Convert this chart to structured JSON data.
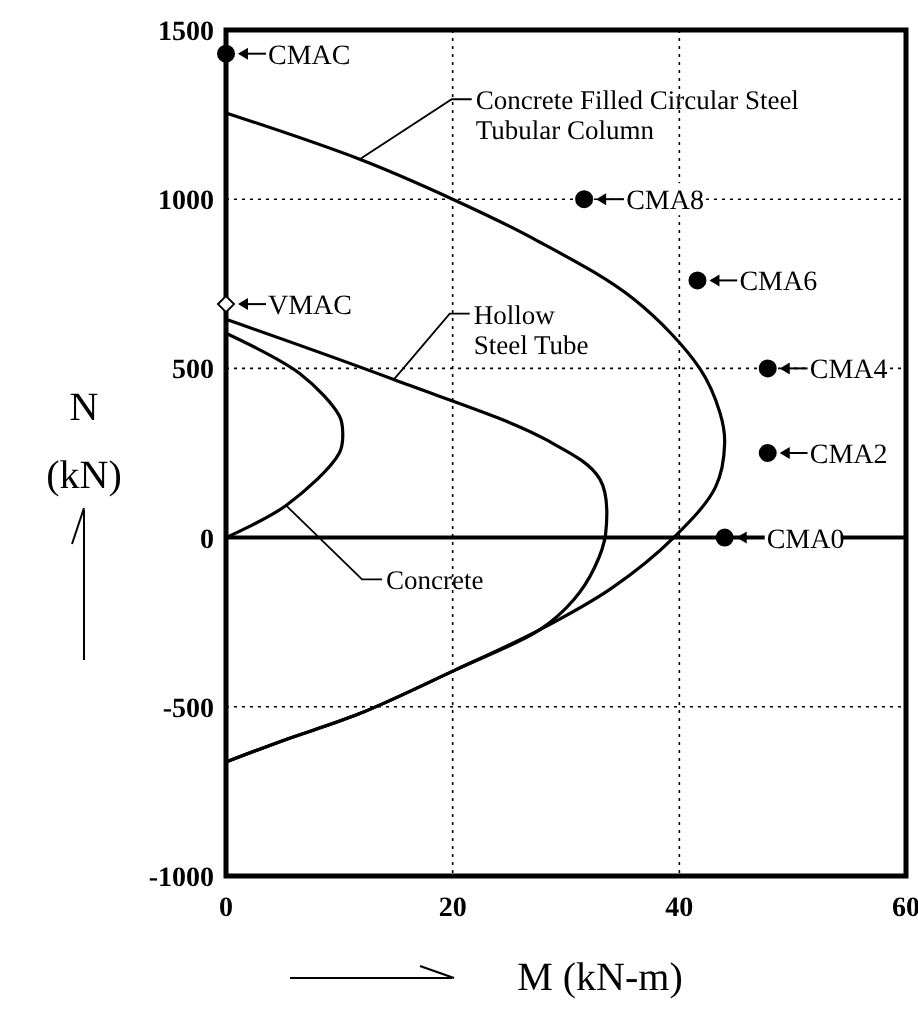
{
  "chart_data": {
    "type": "line",
    "xlabel": "M (kN-m)",
    "ylabel": "N (kN)",
    "xlim": [
      0,
      60
    ],
    "ylim": [
      -1000,
      1500
    ],
    "xticks": [
      0,
      20,
      40,
      60
    ],
    "yticks": [
      -1000,
      -500,
      0,
      500,
      1000,
      1500
    ],
    "grid": true,
    "line_style": "solid",
    "marker": "none",
    "ref_lines": [
      {
        "axis": "y",
        "value": 0,
        "line_style": "solid",
        "color": "#000000"
      }
    ],
    "series": [
      {
        "color": "#000000",
        "x": [
          0,
          11.8,
          20,
          27.2,
          36,
          41.8,
          43.6,
          44,
          43.2,
          39.5,
          34,
          27.7,
          20.3,
          11.8,
          5,
          0
        ],
        "values": [
          1255,
          1118,
          1000,
          882,
          704,
          500,
          367,
          280,
          150,
          0,
          -150,
          -272,
          -390,
          -520,
          -600,
          -663
        ]
      },
      {
        "color": "#000000",
        "x": [
          0,
          14.8,
          28.2,
          33,
          33.5,
          32.5,
          30.7,
          27.7,
          20.3,
          11.8,
          5,
          0
        ],
        "values": [
          645,
          467,
          290,
          172,
          12,
          -90,
          -183,
          -272,
          -390,
          -520,
          -600,
          -663
        ]
      },
      {
        "color": "#000000",
        "x": [
          0,
          5.3,
          10,
          10.3,
          10,
          6.5,
          0
        ],
        "values": [
          0,
          95,
          250,
          310,
          360,
          485,
          604
        ]
      },
      {
        "type": "scatter",
        "marker": "circle",
        "color": "#000000",
        "x": [
          0,
          31.6,
          41.6,
          47.8,
          47.8,
          44
        ],
        "values": [
          1430,
          1000,
          760,
          500,
          250,
          0
        ]
      },
      {
        "type": "scatter",
        "marker": "diamond",
        "color": "#ffffff",
        "x": [
          0
        ],
        "values": [
          690
        ]
      }
    ],
    "annotations": [
      {
        "text": "Concrete Filled Circular Steel Tubular Column",
        "x": 11.8,
        "y": 1118
      },
      {
        "text": "Hollow Steel Tube",
        "x": 14.8,
        "y": 467
      },
      {
        "text": "Concrete",
        "x": 5.3,
        "y": 95
      },
      {
        "text": "CMAC",
        "x": 0,
        "y": 1430
      },
      {
        "text": "VMAC",
        "x": 0,
        "y": 690
      },
      {
        "text": "CMA8",
        "x": 31.6,
        "y": 1000
      },
      {
        "text": "CMA6",
        "x": 41.6,
        "y": 760
      },
      {
        "text": "CMA4",
        "x": 47.8,
        "y": 500
      },
      {
        "text": "CMA2",
        "x": 47.8,
        "y": 250
      },
      {
        "text": "CMA0",
        "x": 44,
        "y": 0
      }
    ]
  }
}
